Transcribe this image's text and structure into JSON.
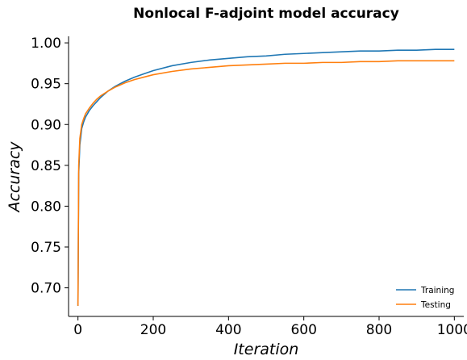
{
  "chart_data": {
    "type": "line",
    "title": "Nonlocal F-adjoint model accuracy",
    "xlabel": "Iteration",
    "ylabel": "Accuracy",
    "xlim": [
      -25,
      1025
    ],
    "ylim": [
      0.665,
      1.008
    ],
    "xticks": [
      0,
      200,
      400,
      600,
      800,
      1000
    ],
    "xtick_labels": [
      "0",
      "200",
      "400",
      "600",
      "800",
      "1000"
    ],
    "yticks": [
      0.7,
      0.75,
      0.8,
      0.85,
      0.9,
      0.95,
      1.0
    ],
    "ytick_labels": [
      "0.70",
      "0.75",
      "0.80",
      "0.85",
      "0.90",
      "0.95",
      "1.00"
    ],
    "grid": false,
    "legend": "bottom-right",
    "series": [
      {
        "name": "Training",
        "color": "#1f77b4",
        "x": [
          0,
          2,
          5,
          10,
          15,
          20,
          30,
          40,
          50,
          60,
          80,
          100,
          125,
          150,
          175,
          200,
          250,
          300,
          350,
          400,
          450,
          500,
          550,
          600,
          650,
          700,
          750,
          800,
          850,
          900,
          950,
          1000
        ],
        "y": [
          0.678,
          0.84,
          0.875,
          0.895,
          0.903,
          0.909,
          0.917,
          0.923,
          0.928,
          0.933,
          0.941,
          0.947,
          0.953,
          0.958,
          0.962,
          0.966,
          0.972,
          0.976,
          0.979,
          0.981,
          0.983,
          0.984,
          0.986,
          0.987,
          0.988,
          0.989,
          0.99,
          0.99,
          0.991,
          0.991,
          0.992,
          0.992
        ]
      },
      {
        "name": "Testing",
        "color": "#ff7f0e",
        "x": [
          0,
          2,
          5,
          10,
          15,
          20,
          30,
          40,
          50,
          60,
          80,
          100,
          125,
          150,
          175,
          200,
          250,
          300,
          350,
          400,
          450,
          500,
          550,
          600,
          650,
          700,
          750,
          800,
          850,
          900,
          950,
          1000
        ],
        "y": [
          0.678,
          0.85,
          0.883,
          0.9,
          0.907,
          0.913,
          0.92,
          0.926,
          0.931,
          0.935,
          0.941,
          0.946,
          0.951,
          0.955,
          0.958,
          0.961,
          0.965,
          0.968,
          0.97,
          0.972,
          0.973,
          0.974,
          0.975,
          0.975,
          0.976,
          0.976,
          0.977,
          0.977,
          0.978,
          0.978,
          0.978,
          0.978
        ]
      }
    ]
  }
}
